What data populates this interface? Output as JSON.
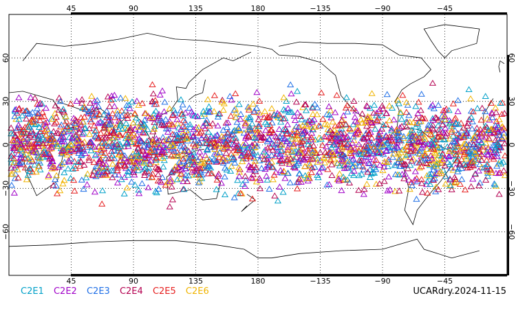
{
  "map": {
    "projection": "equirectangular",
    "center_longitude": 180,
    "lat_range": [
      -90,
      90
    ],
    "grid": "dotted",
    "marker_shape": "triangle-outline",
    "lon_ticks": [
      "45",
      "90",
      "135",
      "180",
      "−135",
      "−90",
      "−45"
    ],
    "lat_ticks_left": [
      "60",
      "30",
      "0",
      "−30",
      "−60"
    ],
    "lat_ticks_right": [
      "60",
      "30",
      "0",
      "−30",
      "−60"
    ],
    "observation_lat_band": [
      -45,
      45
    ]
  },
  "legend": {
    "items": [
      {
        "label": "C2E1",
        "color": "#00a0c8"
      },
      {
        "label": "C2E2",
        "color": "#a000c8"
      },
      {
        "label": "C2E3",
        "color": "#1e6ee6"
      },
      {
        "label": "C2E4",
        "color": "#b40050"
      },
      {
        "label": "C2E5",
        "color": "#e61e1e"
      },
      {
        "label": "C2E6",
        "color": "#f0b400"
      }
    ]
  },
  "footer": {
    "label": "UCARdry.2024-11-15"
  }
}
